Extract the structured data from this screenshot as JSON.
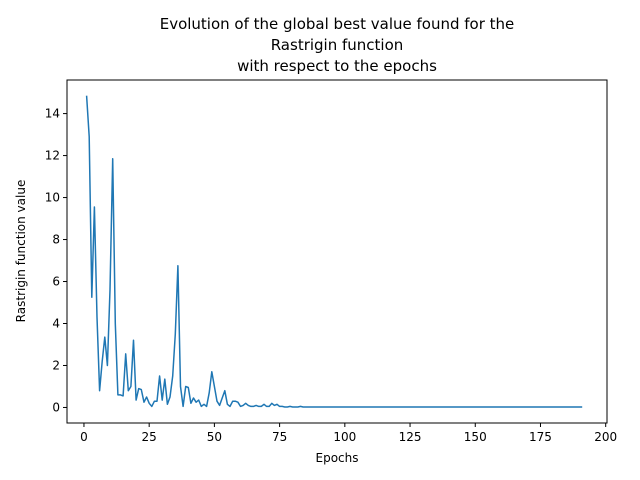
{
  "chart_data": {
    "type": "line",
    "title_lines": [
      "Evolution of the global best value found for the",
      "Rastrigin function",
      "with respect to the epochs"
    ],
    "xlabel": "Epochs",
    "ylabel": "Rastrigin function value",
    "xlim": [
      -6.5,
      200.5
    ],
    "ylim": [
      -0.74,
      15.6
    ],
    "x_ticks": [
      0,
      25,
      50,
      75,
      100,
      125,
      150,
      175,
      200
    ],
    "y_ticks": [
      0,
      2,
      4,
      6,
      8,
      10,
      12,
      14
    ],
    "grid": false,
    "legend": "none",
    "series": [
      {
        "color": "#1f77b4",
        "x": [
          1,
          2,
          3,
          4,
          5,
          6,
          7,
          8,
          9,
          10,
          11,
          12,
          13,
          14,
          15,
          16,
          17,
          18,
          19,
          20,
          21,
          22,
          23,
          24,
          25,
          26,
          27,
          28,
          29,
          30,
          31,
          32,
          33,
          34,
          35,
          36,
          37,
          38,
          39,
          40,
          41,
          42,
          43,
          44,
          45,
          46,
          47,
          48,
          49,
          50,
          51,
          52,
          53,
          54,
          55,
          56,
          57,
          58,
          59,
          60,
          61,
          62,
          63,
          64,
          65,
          66,
          67,
          68,
          69,
          70,
          71,
          72,
          73,
          74,
          75,
          76,
          77,
          78,
          79,
          80,
          81,
          82,
          83,
          84,
          85,
          90,
          100,
          110,
          120,
          130,
          140,
          150,
          160,
          170,
          180,
          191
        ],
        "y": [
          14.85,
          12.9,
          5.25,
          9.55,
          4.3,
          0.8,
          2.2,
          3.35,
          2.0,
          5.6,
          11.85,
          4.0,
          0.6,
          0.6,
          0.55,
          2.55,
          0.8,
          1.0,
          3.2,
          0.35,
          0.9,
          0.85,
          0.25,
          0.5,
          0.2,
          0.05,
          0.3,
          0.3,
          1.5,
          0.35,
          1.35,
          0.15,
          0.5,
          1.5,
          3.5,
          6.75,
          1.0,
          0.05,
          1.0,
          0.95,
          0.2,
          0.45,
          0.25,
          0.35,
          0.05,
          0.15,
          0.05,
          0.7,
          1.7,
          1.0,
          0.3,
          0.1,
          0.45,
          0.8,
          0.15,
          0.05,
          0.3,
          0.3,
          0.25,
          0.05,
          0.1,
          0.2,
          0.1,
          0.05,
          0.05,
          0.1,
          0.05,
          0.05,
          0.15,
          0.05,
          0.05,
          0.2,
          0.1,
          0.15,
          0.05,
          0.05,
          0.02,
          0.02,
          0.05,
          0.02,
          0.02,
          0.02,
          0.05,
          0.02,
          0.02,
          0.02,
          0.02,
          0.02,
          0.02,
          0.02,
          0.02,
          0.02,
          0.02,
          0.02,
          0.02,
          0.02
        ]
      }
    ]
  }
}
